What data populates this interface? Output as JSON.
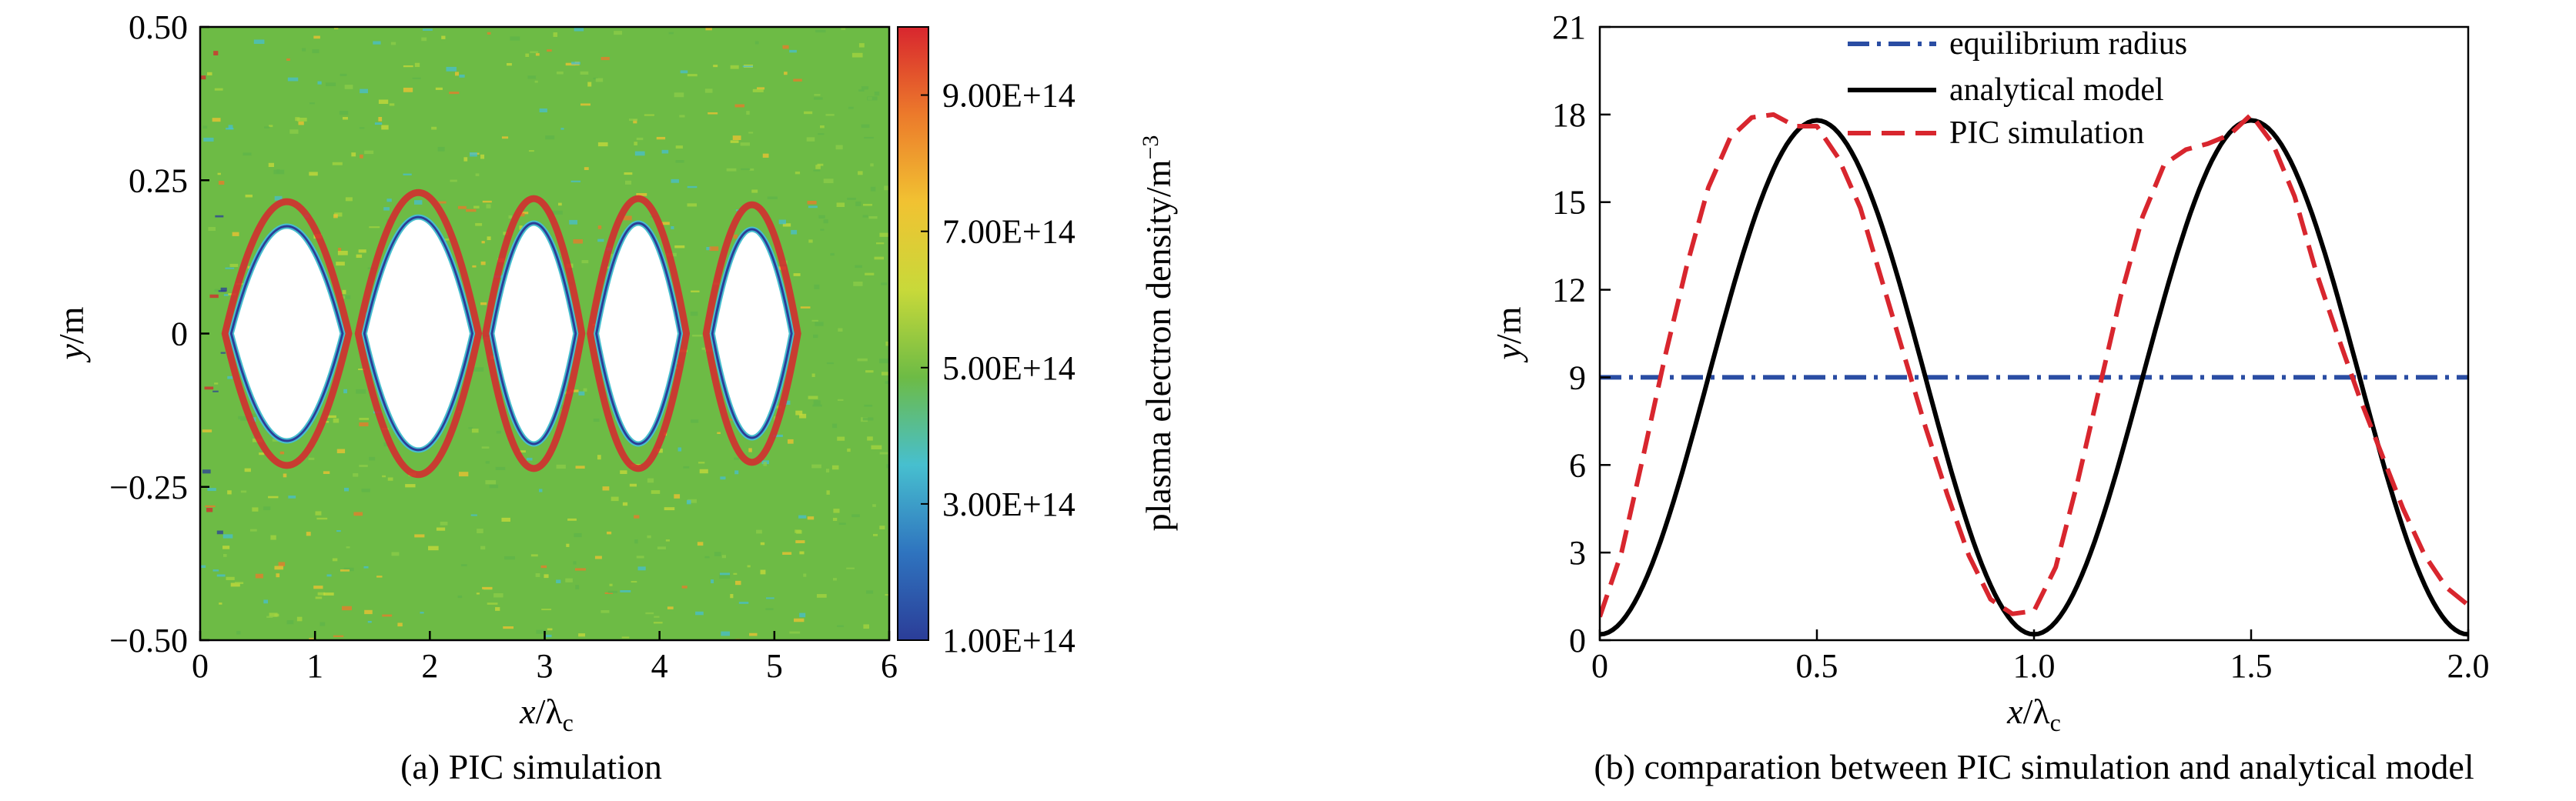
{
  "colors": {
    "equilibrium": "#2a4da3",
    "analytical": "#000000",
    "pic": "#d8262e",
    "background_density": "#6dbb45",
    "colormap": [
      "#2b3d98",
      "#2f74bf",
      "#47bfcf",
      "#6dbb45",
      "#c8d93a",
      "#f1c232",
      "#ec7a2b",
      "#d8262e"
    ]
  },
  "chart_data": [
    {
      "type": "heatmap",
      "caption": "(a) PIC simulation",
      "xlabel_main": "x",
      "xlabel_sep": "/λ",
      "xlabel_sub": "c",
      "ylabel_main": "y",
      "ylabel_unit": "/m",
      "xlim": [
        0,
        6
      ],
      "ylim": [
        -0.5,
        0.5
      ],
      "xticks": [
        0,
        1,
        2,
        3,
        4,
        5,
        6
      ],
      "xtick_labels": [
        "0",
        "1",
        "2",
        "3",
        "4",
        "5",
        "6"
      ],
      "yticks": [
        0.5,
        0.25,
        0,
        -0.25,
        -0.5
      ],
      "ytick_labels": [
        "0.50",
        "0.25",
        "0",
        "−0.25",
        "−0.50"
      ],
      "colorbar": {
        "label": "plasma electron density/m",
        "label_exponent": "−3",
        "range": [
          100000000000000.0,
          1000000000000000.0
        ],
        "ticks": [
          900000000000000.0,
          700000000000000.0,
          500000000000000.0,
          300000000000000.0,
          100000000000000.0
        ],
        "tick_labels": [
          "9.00E+14",
          "7.00E+14",
          "5.00E+14",
          "3.00E+14",
          "1.00E+14"
        ]
      },
      "cavities": [
        {
          "x_start": 0.27,
          "x_end": 1.24,
          "half_height": 0.175
        },
        {
          "x_start": 1.43,
          "x_end": 2.37,
          "half_height": 0.19
        },
        {
          "x_start": 2.54,
          "x_end": 3.27,
          "half_height": 0.18
        },
        {
          "x_start": 3.45,
          "x_end": 4.18,
          "half_height": 0.18
        },
        {
          "x_start": 4.46,
          "x_end": 5.15,
          "half_height": 0.17
        }
      ],
      "background_density": 550000000000000.0
    },
    {
      "type": "line",
      "caption": "(b) comparation between PIC simulation and analytical model",
      "xlabel_main": "x",
      "xlabel_sep": "/λ",
      "xlabel_sub": "c",
      "ylabel_main": "y",
      "ylabel_unit": "/m",
      "xlim": [
        0,
        2.0
      ],
      "ylim": [
        0,
        21
      ],
      "xticks": [
        0,
        0.5,
        1.0,
        1.5,
        2.0
      ],
      "xtick_labels": [
        "0",
        "0.5",
        "1.0",
        "1.5",
        "2.0"
      ],
      "yticks": [
        0,
        3,
        6,
        9,
        12,
        15,
        18,
        21
      ],
      "ytick_labels": [
        "0",
        "3",
        "6",
        "9",
        "12",
        "15",
        "18",
        "21"
      ],
      "legend_position": "top-center",
      "series": [
        {
          "name": "equilibrium radius",
          "style": "dashdot",
          "x": [
            0,
            2.0
          ],
          "y": [
            9,
            9
          ]
        },
        {
          "name": "analytical model",
          "style": "solid",
          "x": [
            0,
            0.05,
            0.1,
            0.15,
            0.2,
            0.25,
            0.3,
            0.35,
            0.4,
            0.45,
            0.5,
            0.55,
            0.6,
            0.65,
            0.7,
            0.75,
            0.8,
            0.85,
            0.9,
            0.95,
            1.0,
            1.05,
            1.1,
            1.15,
            1.2,
            1.25,
            1.3,
            1.35,
            1.4,
            1.45,
            1.5,
            1.55,
            1.6,
            1.65,
            1.7,
            1.75,
            1.8,
            1.85,
            1.9,
            1.95,
            2.0
          ],
          "y": [
            0.2,
            0.63,
            1.9,
            3.89,
            6.43,
            9.0,
            11.57,
            14.1,
            16.1,
            17.37,
            17.8,
            17.37,
            16.1,
            14.1,
            11.57,
            9.0,
            6.43,
            3.89,
            1.9,
            0.63,
            0.2,
            0.63,
            1.9,
            3.89,
            6.43,
            9.0,
            11.57,
            14.1,
            16.1,
            17.37,
            17.8,
            17.37,
            16.1,
            14.1,
            11.57,
            9.0,
            6.43,
            3.89,
            1.9,
            0.63,
            0.2
          ]
        },
        {
          "name": "PIC simulation",
          "style": "dashed",
          "x": [
            0,
            0.05,
            0.1,
            0.15,
            0.2,
            0.25,
            0.3,
            0.35,
            0.4,
            0.45,
            0.5,
            0.55,
            0.6,
            0.65,
            0.7,
            0.75,
            0.8,
            0.85,
            0.9,
            0.95,
            1.0,
            1.05,
            1.1,
            1.15,
            1.2,
            1.25,
            1.3,
            1.35,
            1.4,
            1.45,
            1.5,
            1.55,
            1.6,
            1.65,
            1.7,
            1.75,
            1.8,
            1.85,
            1.9,
            1.95,
            2.0
          ],
          "y": [
            0.8,
            3.0,
            6.3,
            9.7,
            12.8,
            15.5,
            17.2,
            17.9,
            18.0,
            17.6,
            17.6,
            16.5,
            14.8,
            12.3,
            9.8,
            7.3,
            5.0,
            2.9,
            1.4,
            0.9,
            1.0,
            2.5,
            5.4,
            8.6,
            11.8,
            14.5,
            16.3,
            16.8,
            17.0,
            17.3,
            18.0,
            17.0,
            15.2,
            12.6,
            10.4,
            8.3,
            6.4,
            4.5,
            2.9,
            1.8,
            1.2
          ]
        }
      ]
    }
  ]
}
